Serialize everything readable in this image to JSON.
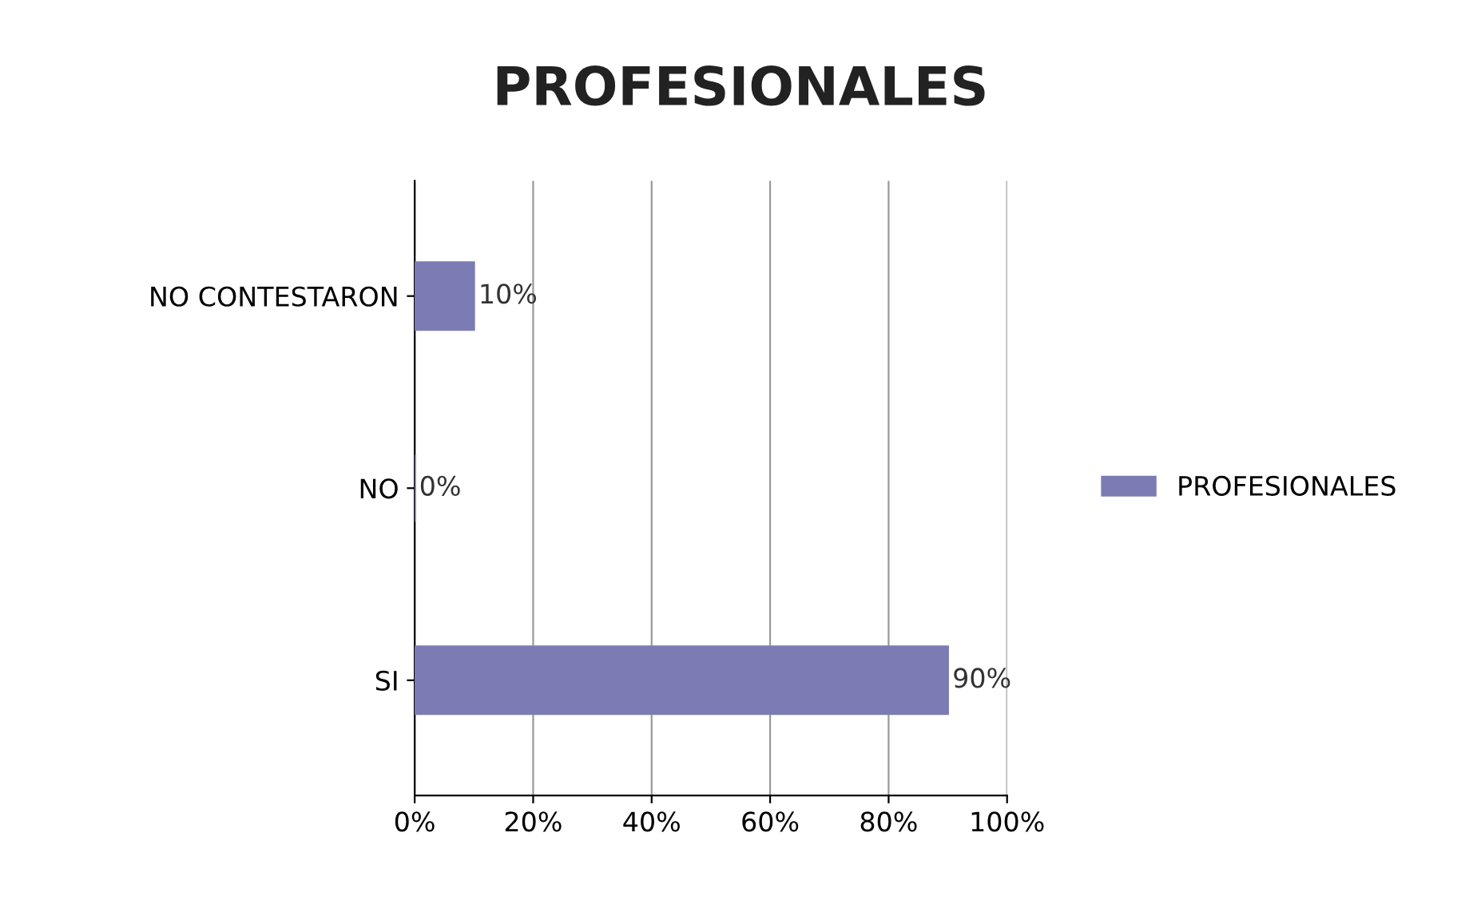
{
  "chart_data": {
    "type": "bar",
    "orientation": "horizontal",
    "title": "PROFESIONALES",
    "categories": [
      "NO CONTESTARON",
      "NO",
      "SI"
    ],
    "series": [
      {
        "name": "PROFESIONALES",
        "color": "#7c7cb4",
        "values": [
          10,
          0,
          90
        ],
        "value_labels": [
          "10%",
          "0%",
          "90%"
        ]
      }
    ],
    "xlim": [
      0,
      100
    ],
    "xticks": [
      {
        "value": 0,
        "label": "0%"
      },
      {
        "value": 20,
        "label": "20%"
      },
      {
        "value": 40,
        "label": "40%"
      },
      {
        "value": 60,
        "label": "60%"
      },
      {
        "value": 80,
        "label": "80%"
      },
      {
        "value": 100,
        "label": "100%"
      }
    ],
    "grid": "x",
    "legend": "right"
  }
}
